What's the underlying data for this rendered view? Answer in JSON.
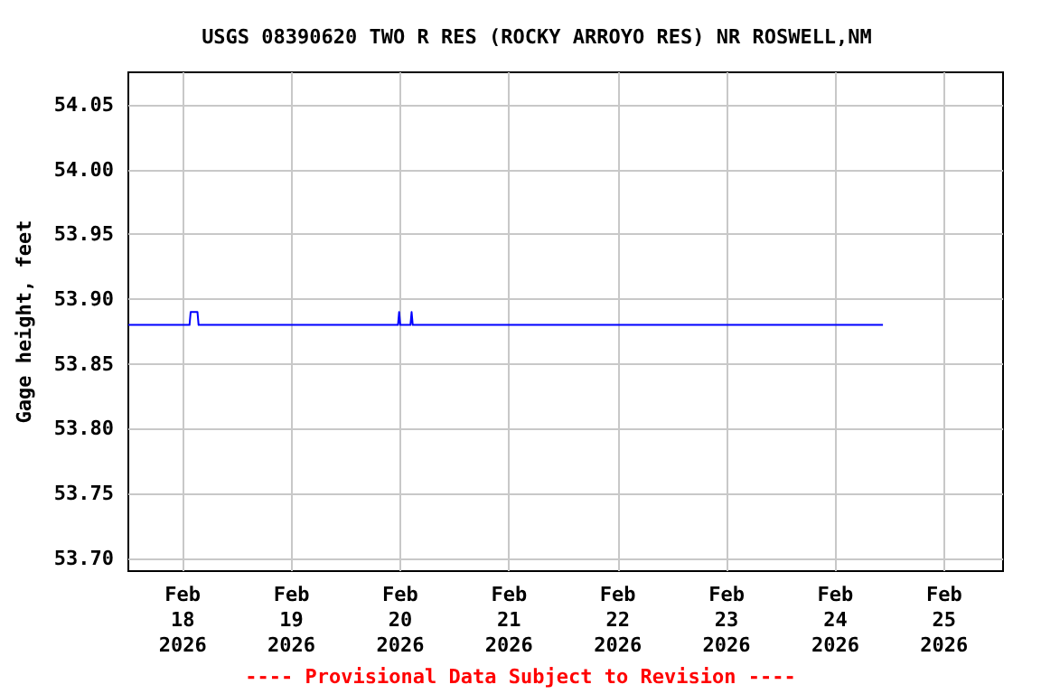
{
  "chart_data": {
    "type": "line",
    "title": "USGS 08390620 TWO R RES (ROCKY ARROYO RES) NR ROSWELL,NM",
    "ylabel": "Gage height, feet",
    "annotations": [
      "---- Provisional Data Subject to Revision ----"
    ],
    "x": [
      "2026-02-17T12:00",
      "2026-02-18T01:30",
      "2026-02-18T01:45",
      "2026-02-18T03:15",
      "2026-02-18T03:30",
      "2026-02-19T23:30",
      "2026-02-19T23:45",
      "2026-02-20T00:00",
      "2026-02-20T02:15",
      "2026-02-20T02:30",
      "2026-02-20T02:45",
      "2026-02-24T10:30"
    ],
    "series": [
      {
        "color": "#0000ff",
        "values": [
          53.88,
          53.88,
          53.89,
          53.89,
          53.88,
          53.88,
          53.89,
          53.88,
          53.88,
          53.89,
          53.88,
          53.88
        ]
      }
    ],
    "xlim": [
      "2026-02-17T12:00",
      "2026-02-25T13:00"
    ],
    "xticks": [
      {
        "value": "2026-02-18",
        "label": "Feb\n18\n2026"
      },
      {
        "value": "2026-02-19",
        "label": "Feb\n19\n2026"
      },
      {
        "value": "2026-02-20",
        "label": "Feb\n20\n2026"
      },
      {
        "value": "2026-02-21",
        "label": "Feb\n21\n2026"
      },
      {
        "value": "2026-02-22",
        "label": "Feb\n22\n2026"
      },
      {
        "value": "2026-02-23",
        "label": "Feb\n23\n2026"
      },
      {
        "value": "2026-02-24",
        "label": "Feb\n24\n2026"
      },
      {
        "value": "2026-02-25",
        "label": "Feb\n25\n2026"
      }
    ],
    "ylim": [
      53.69,
      54.075
    ],
    "yticks": [
      {
        "value": 53.7,
        "label": "53.70"
      },
      {
        "value": 53.75,
        "label": "53.75"
      },
      {
        "value": 53.8,
        "label": "53.80"
      },
      {
        "value": 53.85,
        "label": "53.85"
      },
      {
        "value": 53.9,
        "label": "53.90"
      },
      {
        "value": 53.95,
        "label": "53.95"
      },
      {
        "value": 54.0,
        "label": "54.00"
      },
      {
        "value": 54.05,
        "label": "54.05"
      }
    ],
    "grid": true,
    "marker": "none",
    "line_style": "solid"
  }
}
